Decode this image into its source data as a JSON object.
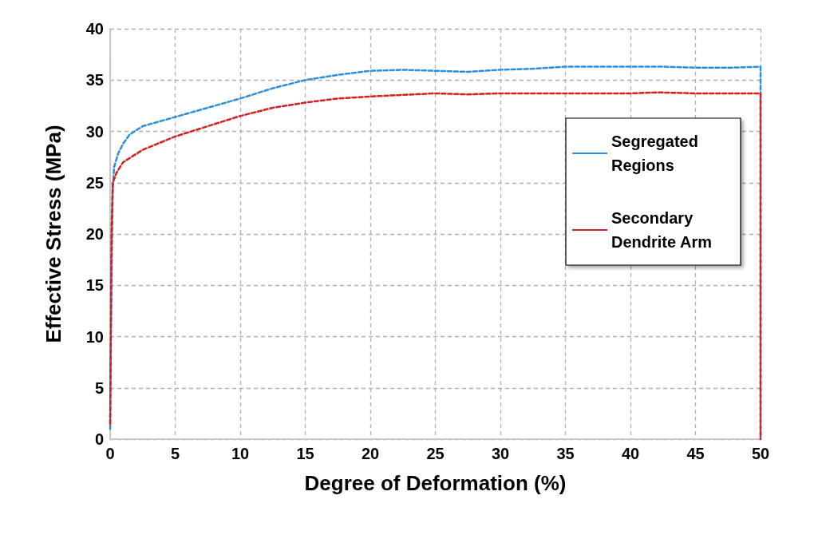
{
  "chart_data": {
    "type": "line",
    "xlabel": "Degree of Deformation (%)",
    "ylabel": "Effective Stress (MPa)",
    "xlim": [
      0,
      50
    ],
    "xticks": [
      0,
      5,
      10,
      15,
      20,
      25,
      30,
      35,
      40,
      45,
      50
    ],
    "ylim": [
      0,
      40
    ],
    "yticks": [
      0,
      5,
      10,
      15,
      20,
      25,
      30,
      35,
      40
    ],
    "grid": true,
    "legend": "right",
    "marker": "none",
    "series": [
      {
        "name": "Segregated Regions",
        "color": "#2e8fd8",
        "line_style": "dashed",
        "x": [
          0,
          0.1,
          0.2,
          0.3,
          0.6,
          1,
          1.5,
          2.5,
          5,
          7.5,
          10,
          12.5,
          15,
          17.5,
          20,
          22.5,
          25,
          27.5,
          30,
          32.5,
          35,
          40,
          42.5,
          45,
          47.5,
          50,
          50
        ],
        "values": [
          1,
          15,
          24,
          26.5,
          27.8,
          28.8,
          29.7,
          30.5,
          31.4,
          32.3,
          33.2,
          34.2,
          35,
          35.5,
          35.9,
          36,
          35.9,
          35.8,
          36,
          36.1,
          36.3,
          36.3,
          36.3,
          36.2,
          36.2,
          36.3,
          0
        ]
      },
      {
        "name": "Secondary Dendrite Arm",
        "color": "#d42020",
        "line_style": "dashed",
        "x": [
          0,
          0.05,
          0.1,
          0.2,
          0.5,
          1,
          2.5,
          5,
          7.5,
          10,
          12.5,
          15,
          17.5,
          20,
          25,
          27.5,
          30,
          35,
          40,
          42,
          45,
          50,
          50
        ],
        "values": [
          1.5,
          10,
          20,
          25,
          26,
          27,
          28.2,
          29.5,
          30.5,
          31.5,
          32.3,
          32.8,
          33.2,
          33.4,
          33.7,
          33.6,
          33.7,
          33.7,
          33.7,
          33.8,
          33.7,
          33.7,
          0
        ]
      }
    ]
  }
}
